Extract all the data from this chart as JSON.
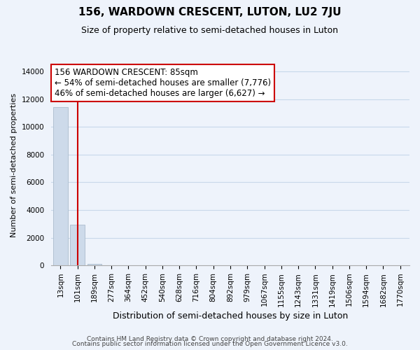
{
  "title": "156, WARDOWN CRESCENT, LUTON, LU2 7JU",
  "subtitle": "Size of property relative to semi-detached houses in Luton",
  "xlabel": "Distribution of semi-detached houses by size in Luton",
  "ylabel": "Number of semi-detached properties",
  "bar_labels": [
    "13sqm",
    "101sqm",
    "189sqm",
    "277sqm",
    "364sqm",
    "452sqm",
    "540sqm",
    "628sqm",
    "716sqm",
    "804sqm",
    "892sqm",
    "979sqm",
    "1067sqm",
    "1155sqm",
    "1243sqm",
    "1331sqm",
    "1419sqm",
    "1506sqm",
    "1594sqm",
    "1682sqm",
    "1770sqm"
  ],
  "bar_values": [
    11450,
    2950,
    130,
    0,
    0,
    0,
    0,
    0,
    0,
    0,
    0,
    0,
    0,
    0,
    0,
    0,
    0,
    0,
    0,
    0,
    0
  ],
  "bar_color": "#cddaea",
  "bar_edge_color": "#aabccc",
  "ylim": [
    0,
    14500
  ],
  "yticks": [
    0,
    2000,
    4000,
    6000,
    8000,
    10000,
    12000,
    14000
  ],
  "property_line_x": 1.0,
  "annotation_title": "156 WARDOWN CRESCENT: 85sqm",
  "annotation_line1": "← 54% of semi-detached houses are smaller (7,776)",
  "annotation_line2": "46% of semi-detached houses are larger (6,627) →",
  "annotation_box_facecolor": "#ffffff",
  "annotation_box_edgecolor": "#cc0000",
  "vline_color": "#cc0000",
  "footer_line1": "Contains HM Land Registry data © Crown copyright and database right 2024.",
  "footer_line2": "Contains public sector information licensed under the Open Government Licence v3.0.",
  "bg_color": "#eef3fb",
  "grid_color": "#c8d8ea",
  "title_fontsize": 11,
  "subtitle_fontsize": 9,
  "xlabel_fontsize": 9,
  "ylabel_fontsize": 8,
  "tick_fontsize": 7.5,
  "annotation_fontsize": 8.5,
  "footer_fontsize": 6.5
}
